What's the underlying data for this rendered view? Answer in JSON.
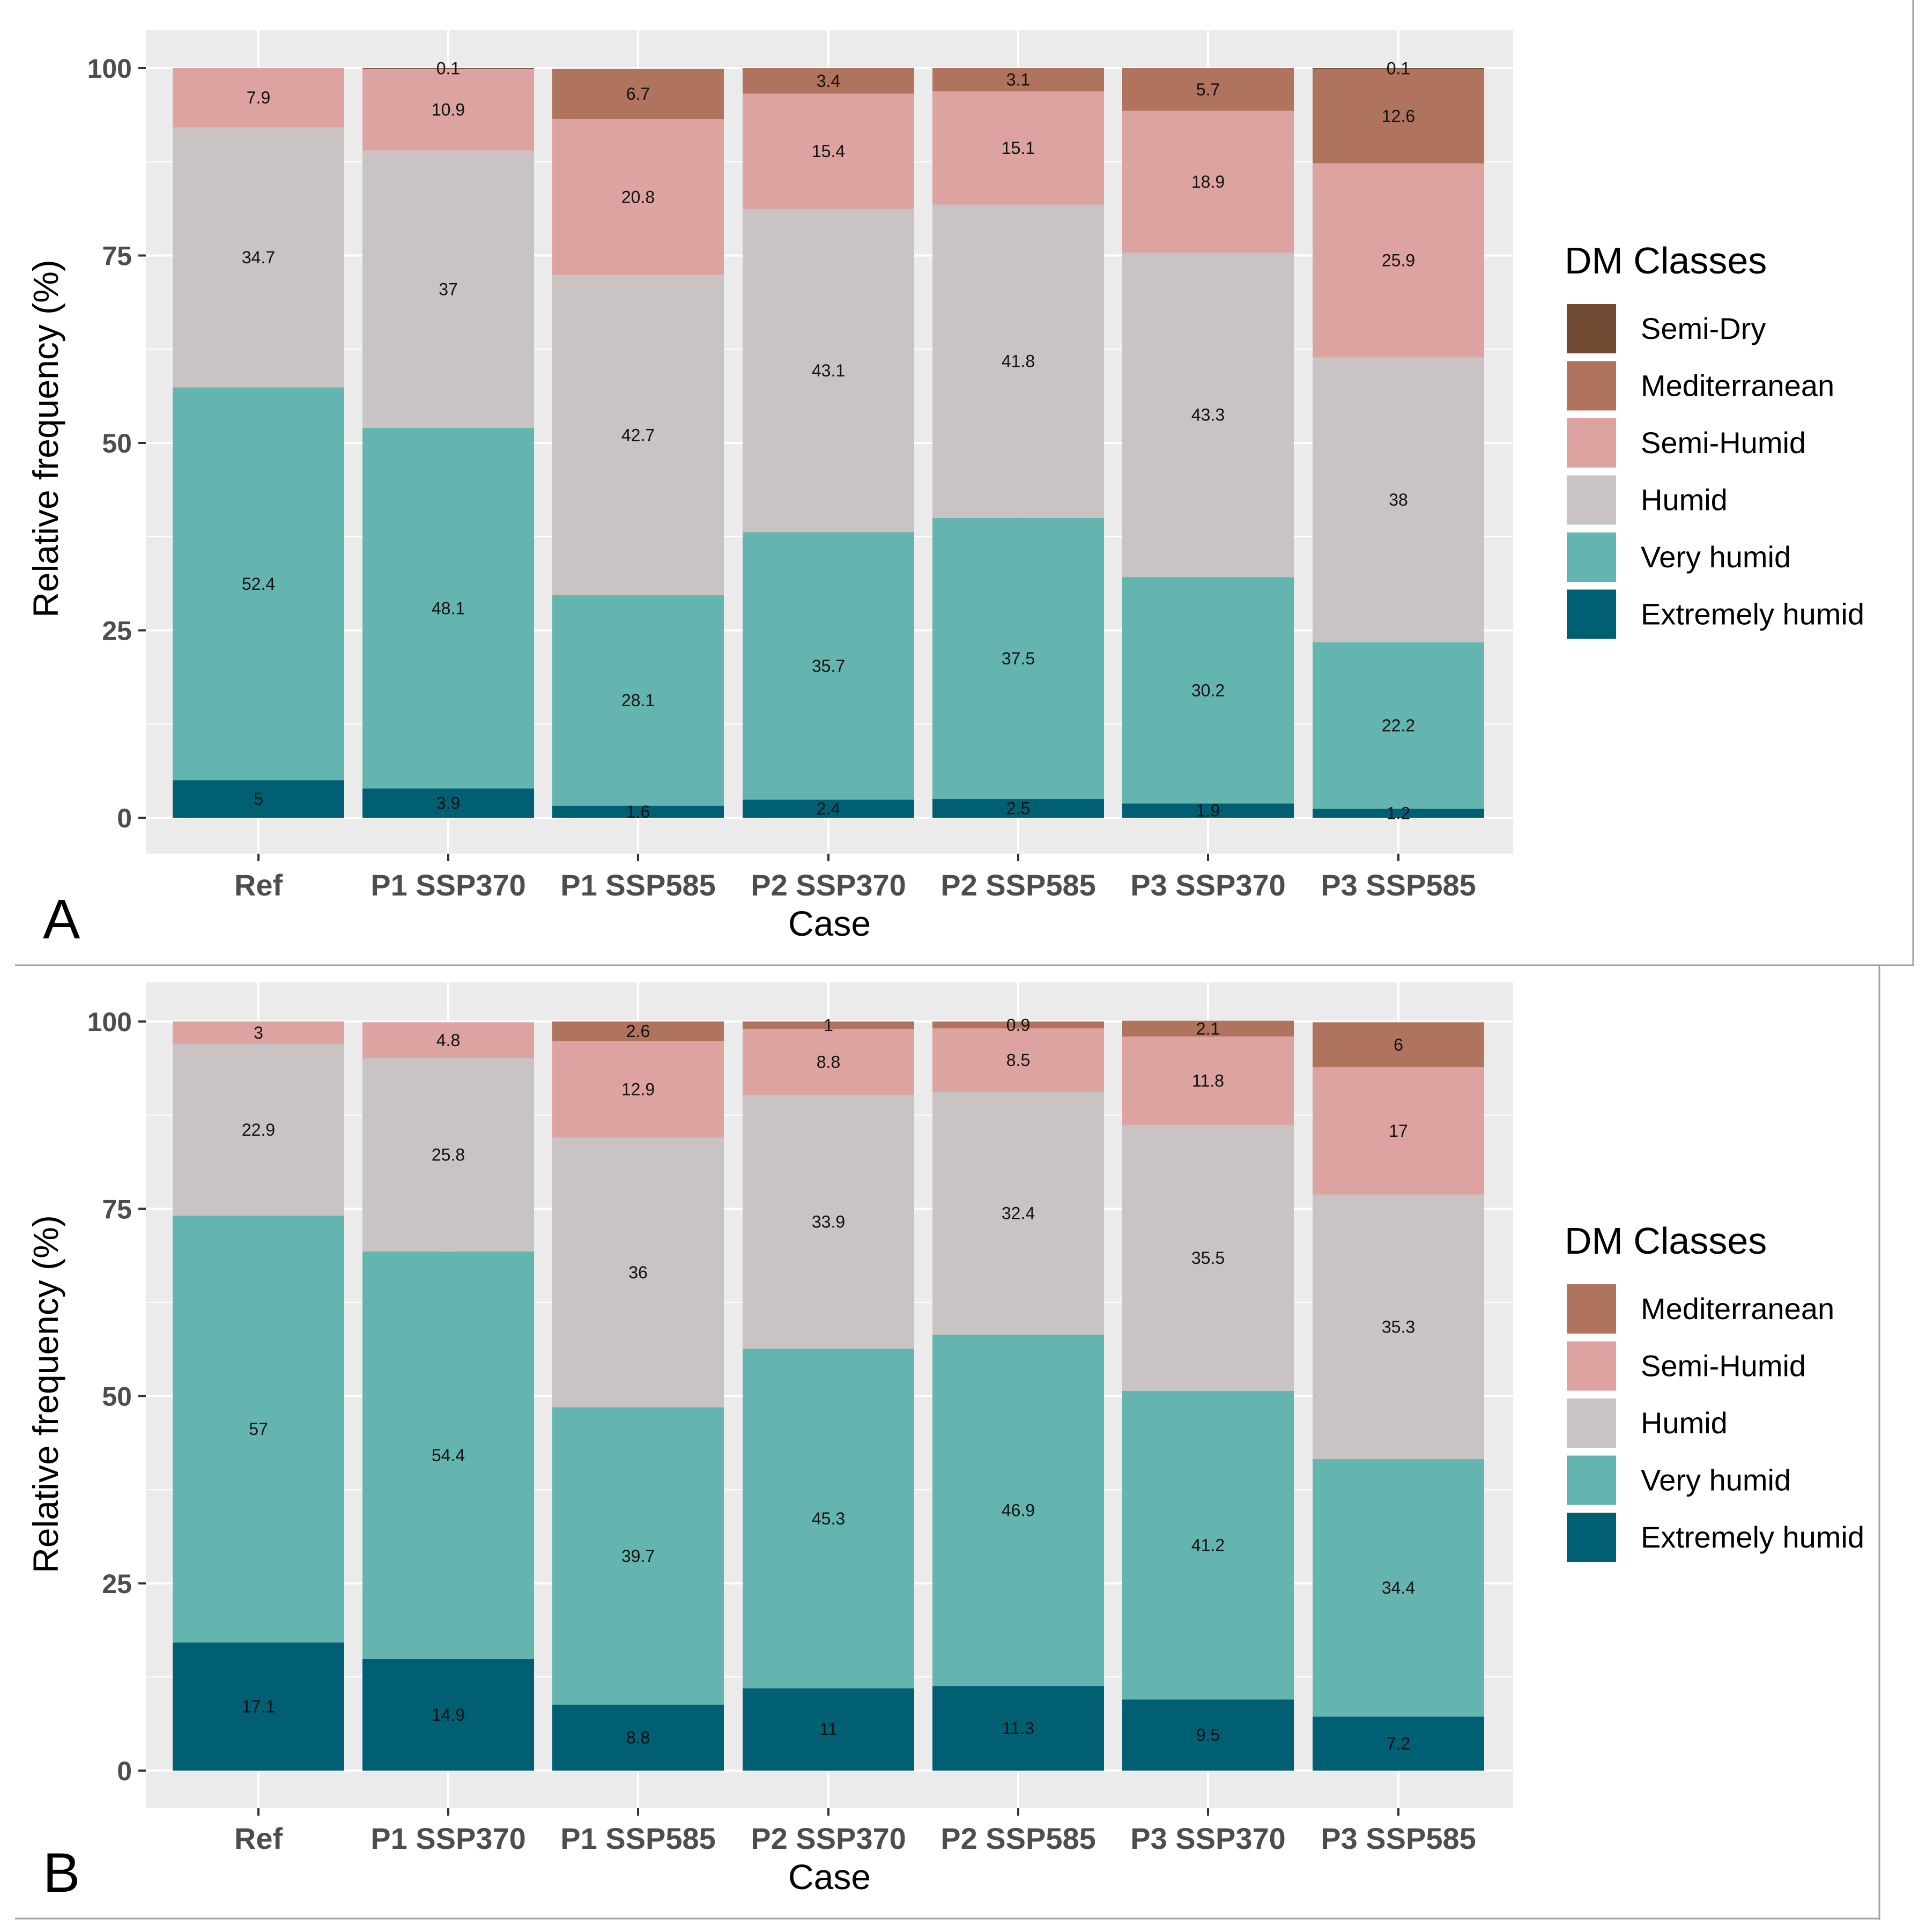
{
  "categories": [
    "Ref",
    "P1 SSP370",
    "P1 SSP585",
    "P2 SSP370",
    "P2 SSP585",
    "P3 SSP370",
    "P3 SSP585"
  ],
  "classColors": {
    "Extremely humid": "#005F73",
    "Very humid": "#64B5AF",
    "Humid": "#C9C3C3",
    "Semi-Humid": "#DCA3A1",
    "Mediterranean": "#B0735D",
    "Semi-Dry": "#704A33"
  },
  "colors": {
    "panel_bg": "#EBEBEB",
    "gridline": "#FFFFFF",
    "axis_text": "#4D4D4D",
    "axis_title": "#000000",
    "divider": "#A0A0A0"
  },
  "chart_data": [
    {
      "panel_label": "A",
      "type": "bar",
      "stacked": true,
      "title": "",
      "xlabel": "Case",
      "ylabel": "Relative frequency (%)",
      "ylim": [
        0,
        100
      ],
      "yticks": [
        0,
        25,
        50,
        75,
        100
      ],
      "legend_title": "DM Classes",
      "legend_position": "right",
      "legend_items": [
        "Semi-Dry",
        "Mediterranean",
        "Semi-Humid",
        "Humid",
        "Very humid",
        "Extremely humid"
      ],
      "categories": [
        "Ref",
        "P1 SSP370",
        "P1 SSP585",
        "P2 SSP370",
        "P2 SSP585",
        "P3 SSP370",
        "P3 SSP585"
      ],
      "series": [
        {
          "name": "Extremely humid",
          "values": [
            5,
            3.9,
            1.6,
            2.4,
            2.5,
            1.9,
            1.2
          ]
        },
        {
          "name": "Very humid",
          "values": [
            52.4,
            48.1,
            28.1,
            35.7,
            37.5,
            30.2,
            22.2
          ]
        },
        {
          "name": "Humid",
          "values": [
            34.7,
            37,
            42.7,
            43.1,
            41.8,
            43.3,
            38
          ]
        },
        {
          "name": "Semi-Humid",
          "values": [
            7.9,
            10.9,
            20.8,
            15.4,
            15.1,
            18.9,
            25.9
          ]
        },
        {
          "name": "Mediterranean",
          "values": [
            null,
            null,
            6.7,
            3.4,
            3.1,
            5.7,
            12.6
          ]
        },
        {
          "name": "Semi-Dry",
          "values": [
            null,
            0.1,
            null,
            null,
            null,
            null,
            0.1
          ]
        }
      ]
    },
    {
      "panel_label": "B",
      "type": "bar",
      "stacked": true,
      "title": "",
      "xlabel": "Case",
      "ylabel": "Relative frequency (%)",
      "ylim": [
        0,
        100
      ],
      "yticks": [
        0,
        25,
        50,
        75,
        100
      ],
      "legend_title": "DM Classes",
      "legend_position": "right",
      "legend_items": [
        "Mediterranean",
        "Semi-Humid",
        "Humid",
        "Very humid",
        "Extremely humid"
      ],
      "categories": [
        "Ref",
        "P1 SSP370",
        "P1 SSP585",
        "P2 SSP370",
        "P2 SSP585",
        "P3 SSP370",
        "P3 SSP585"
      ],
      "series": [
        {
          "name": "Extremely humid",
          "values": [
            17.1,
            14.9,
            8.8,
            11,
            11.3,
            9.5,
            7.2
          ]
        },
        {
          "name": "Very humid",
          "values": [
            57,
            54.4,
            39.7,
            45.3,
            46.9,
            41.2,
            34.4
          ]
        },
        {
          "name": "Humid",
          "values": [
            22.9,
            25.8,
            36,
            33.9,
            32.4,
            35.5,
            35.3
          ]
        },
        {
          "name": "Semi-Humid",
          "values": [
            3,
            4.8,
            12.9,
            8.8,
            8.5,
            11.8,
            17
          ]
        },
        {
          "name": "Mediterranean",
          "values": [
            null,
            null,
            2.6,
            1,
            0.9,
            2.1,
            6
          ]
        }
      ]
    }
  ]
}
